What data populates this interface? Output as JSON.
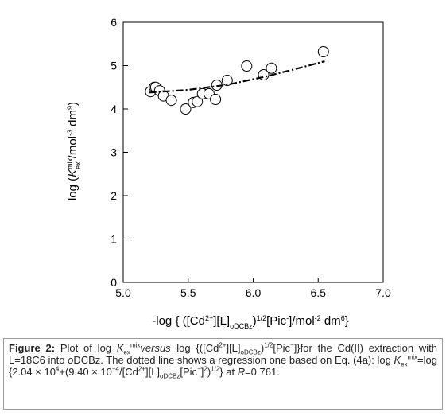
{
  "chart_data": {
    "type": "scatter",
    "xlim": [
      5.0,
      7.0
    ],
    "ylim": [
      0,
      6
    ],
    "xticks": [
      {
        "value": 5.0,
        "label": "5.0"
      },
      5.5,
      {
        "value": 6.0,
        "label": "6.0"
      },
      6.5,
      {
        "value": 7.0,
        "label": "7.0"
      }
    ],
    "yticks": [
      0,
      1,
      2,
      3,
      4,
      5,
      6
    ],
    "x_label_parts": [
      "-log { ([Cd",
      "2+",
      "][L]",
      "oDCBz",
      ")",
      "1/2",
      "[Pic",
      "-",
      "]/mol",
      "-2",
      " dm",
      "6",
      "}"
    ],
    "y_label_parts": [
      "log (",
      "K",
      "mix",
      "ex",
      "/mol",
      "-3",
      " dm",
      "9",
      ")"
    ],
    "series": [
      {
        "marker": "circle",
        "color": "#000000",
        "x": [
          5.21,
          5.24,
          5.25,
          5.28,
          5.31,
          5.37,
          5.48,
          5.54,
          5.57,
          5.61,
          5.66,
          5.71,
          5.72,
          5.8,
          5.95,
          6.08,
          6.14,
          6.54
        ],
        "values": [
          4.4,
          4.5,
          4.5,
          4.42,
          4.3,
          4.2,
          4.0,
          4.15,
          4.17,
          4.35,
          4.35,
          4.22,
          4.55,
          4.66,
          4.99,
          4.79,
          4.94,
          5.32
        ]
      },
      {
        "marker": "dashdot-line",
        "color": "#000000",
        "x": [
          5.2,
          5.5,
          5.8,
          6.1,
          6.4,
          6.55
        ],
        "values": [
          4.38,
          4.44,
          4.56,
          4.75,
          4.98,
          5.1
        ]
      }
    ]
  },
  "caption": {
    "parts": [
      "Figure 2:",
      " Plot of log ",
      "K",
      "ex",
      "mix",
      "versus",
      "−log {([Cd",
      "2+",
      "][L]",
      "oDCBz",
      ")",
      "1/2",
      "[Pic",
      "−",
      "]}for the Cd(II) extraction with L=18C6 into ",
      "o",
      "DCBz. The dotted line shows a regression one based on Eq. (4a): log ",
      "K",
      "ex",
      "mix",
      "=log {2.04 × 10",
      "4",
      "+(9.40 × 10",
      "−4",
      "/[Cd",
      "2+",
      "][L]",
      "oDCBz",
      "[Pic",
      "−",
      "]",
      "2",
      ")",
      "1/2",
      "} at ",
      "R",
      "=0.761."
    ]
  }
}
